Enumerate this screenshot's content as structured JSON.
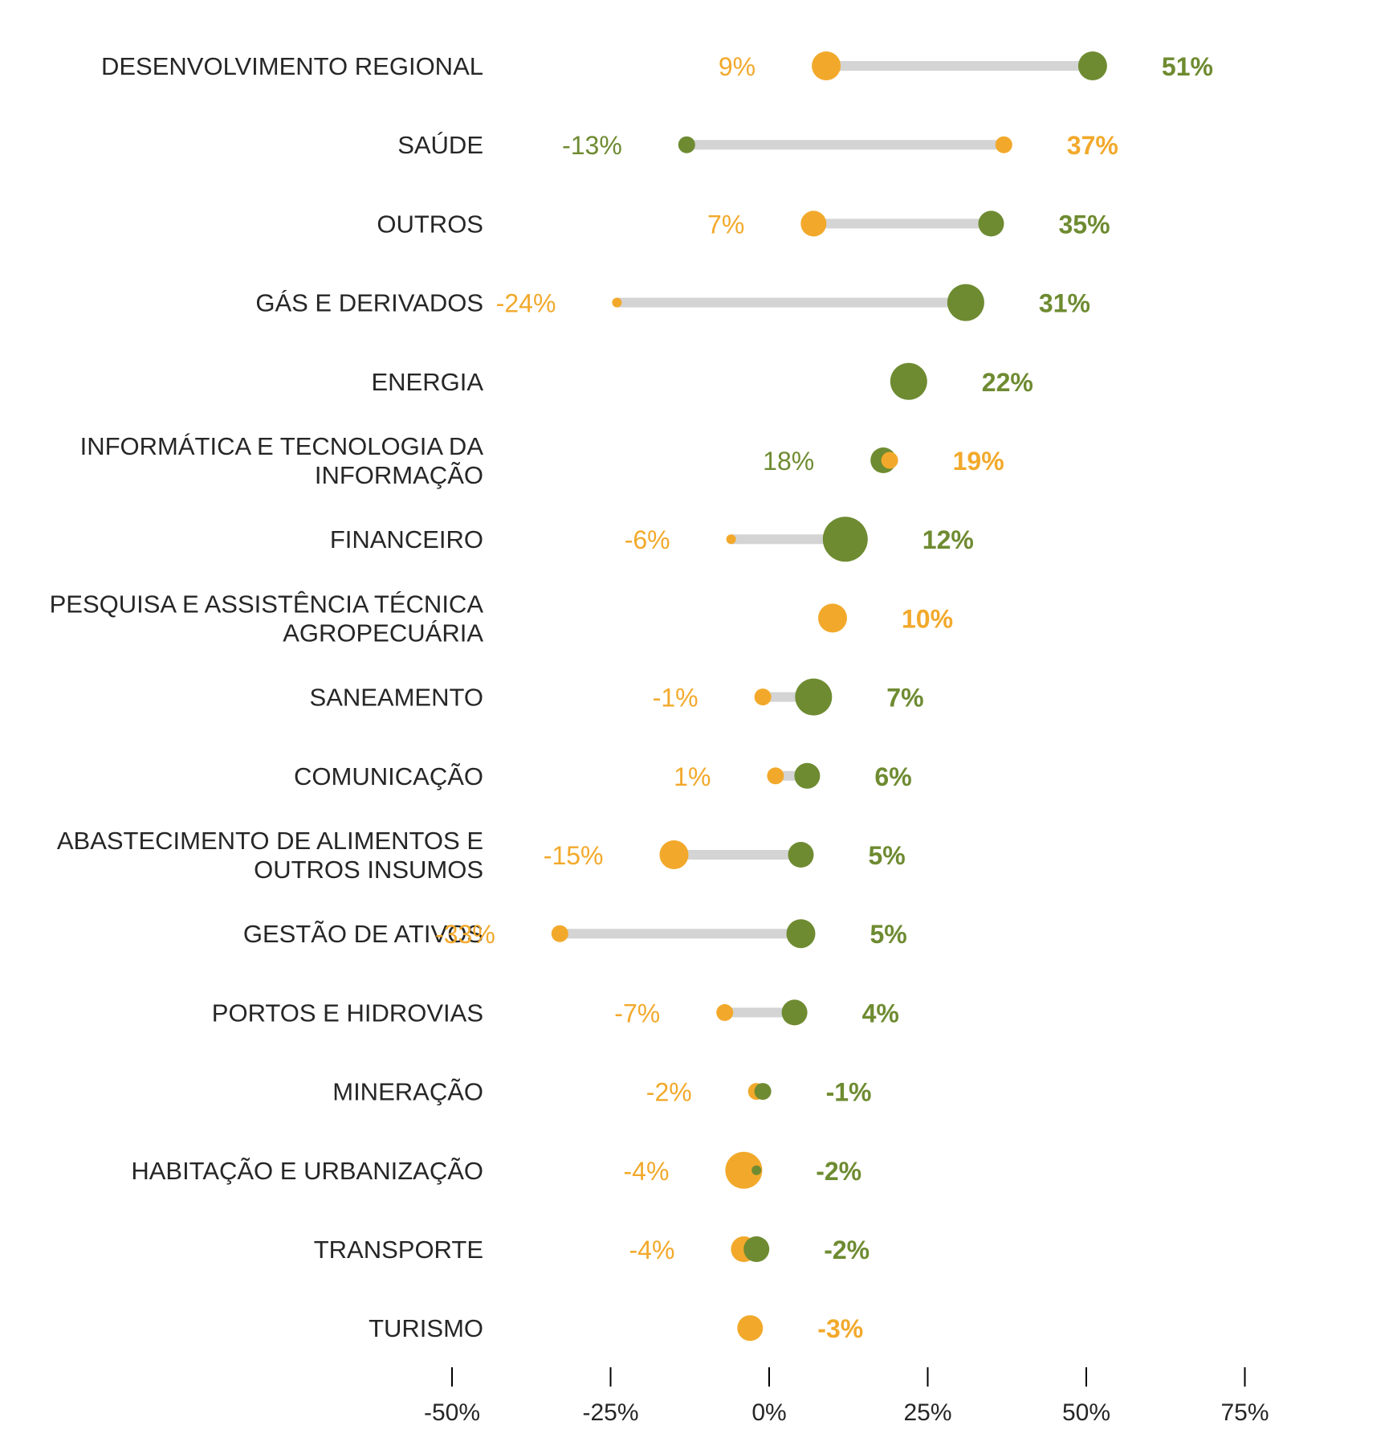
{
  "colors": {
    "orange": "#F2A92B",
    "green": "#6E8B31",
    "segment": "#D4D4D4",
    "axis": "#000000"
  },
  "chart_data": {
    "type": "dumbbell",
    "title": "",
    "xlabel": "",
    "ylabel": "",
    "xlim": [
      -50,
      75
    ],
    "x_ticks": [
      {
        "value": -50,
        "label": "-50%"
      },
      {
        "value": -25,
        "label": "-25%"
      },
      {
        "value": 0,
        "label": "0%"
      },
      {
        "value": 25,
        "label": "25%"
      },
      {
        "value": 50,
        "label": "50%"
      },
      {
        "value": 75,
        "label": "75%"
      }
    ],
    "grid": false,
    "legend": "none",
    "rows": [
      {
        "category": [
          "DESENVOLVIMENTO REGIONAL"
        ],
        "orange": {
          "value": 9,
          "label": "9%",
          "size": "large"
        },
        "green": {
          "value": 51,
          "label": "51%",
          "size": "large"
        },
        "front": "green"
      },
      {
        "category": [
          "SAÚDE"
        ],
        "orange": {
          "value": 37,
          "label": "37%",
          "size": "small"
        },
        "green": {
          "value": -13,
          "label": "-13%",
          "size": "small"
        },
        "front": "orange"
      },
      {
        "category": [
          "OUTROS"
        ],
        "orange": {
          "value": 7,
          "label": "7%",
          "size": "medium"
        },
        "green": {
          "value": 35,
          "label": "35%",
          "size": "medium"
        },
        "front": "green"
      },
      {
        "category": [
          "GÁS E DERIVADOS"
        ],
        "orange": {
          "value": -24,
          "label": "-24%",
          "size": "tiny"
        },
        "green": {
          "value": 31,
          "label": "31%",
          "size": "xlarge"
        },
        "front": "green"
      },
      {
        "category": [
          "ENERGIA"
        ],
        "orange": null,
        "green": {
          "value": 22,
          "label": "22%",
          "size": "xlarge"
        },
        "front": "green"
      },
      {
        "category": [
          "INFORMÁTICA E TECNOLOGIA DA",
          "INFORMAÇÃO"
        ],
        "orange": {
          "value": 19,
          "label": "19%",
          "size": "small"
        },
        "green": {
          "value": 18,
          "label": "18%",
          "size": "medium"
        },
        "front": "orange"
      },
      {
        "category": [
          "FINANCEIRO"
        ],
        "orange": {
          "value": -6,
          "label": "-6%",
          "size": "tiny"
        },
        "green": {
          "value": 12,
          "label": "12%",
          "size": "xxlarge"
        },
        "front": "green"
      },
      {
        "category": [
          "PESQUISA E ASSISTÊNCIA TÉCNICA",
          "AGROPECUÁRIA"
        ],
        "orange": {
          "value": 10,
          "label": "10%",
          "size": "large"
        },
        "green": null,
        "front": "orange"
      },
      {
        "category": [
          "SANEAMENTO"
        ],
        "orange": {
          "value": -1,
          "label": "-1%",
          "size": "small"
        },
        "green": {
          "value": 7,
          "label": "7%",
          "size": "xlarge"
        },
        "front": "green"
      },
      {
        "category": [
          "COMUNICAÇÃO"
        ],
        "orange": {
          "value": 1,
          "label": "1%",
          "size": "small"
        },
        "green": {
          "value": 6,
          "label": "6%",
          "size": "medium"
        },
        "front": "green"
      },
      {
        "category": [
          "ABASTECIMENTO DE ALIMENTOS E",
          "OUTROS INSUMOS"
        ],
        "orange": {
          "value": -15,
          "label": "-15%",
          "size": "large"
        },
        "green": {
          "value": 5,
          "label": "5%",
          "size": "medium"
        },
        "front": "green"
      },
      {
        "category": [
          "GESTÃO DE ATIVOS"
        ],
        "orange": {
          "value": -33,
          "label": "-33%",
          "size": "small"
        },
        "green": {
          "value": 5,
          "label": "5%",
          "size": "large"
        },
        "front": "green"
      },
      {
        "category": [
          "PORTOS E HIDROVIAS"
        ],
        "orange": {
          "value": -7,
          "label": "-7%",
          "size": "small"
        },
        "green": {
          "value": 4,
          "label": "4%",
          "size": "medium"
        },
        "front": "green"
      },
      {
        "category": [
          "MINERAÇÃO"
        ],
        "orange": {
          "value": -2,
          "label": "-2%",
          "size": "small"
        },
        "green": {
          "value": -1,
          "label": "-1%",
          "size": "small"
        },
        "front": "green"
      },
      {
        "category": [
          "HABITAÇÃO E URBANIZAÇÃO"
        ],
        "orange": {
          "value": -4,
          "label": "-4%",
          "size": "xlarge"
        },
        "green": {
          "value": -2,
          "label": "-2%",
          "size": "tiny"
        },
        "front": "green"
      },
      {
        "category": [
          "TRANSPORTE"
        ],
        "orange": {
          "value": -4,
          "label": "-4%",
          "size": "medium"
        },
        "green": {
          "value": -2,
          "label": "-2%",
          "size": "medium"
        },
        "front": "green"
      },
      {
        "category": [
          "TURISMO"
        ],
        "orange": {
          "value": -3,
          "label": "-3%",
          "size": "medium"
        },
        "green": null,
        "front": "orange"
      }
    ]
  }
}
